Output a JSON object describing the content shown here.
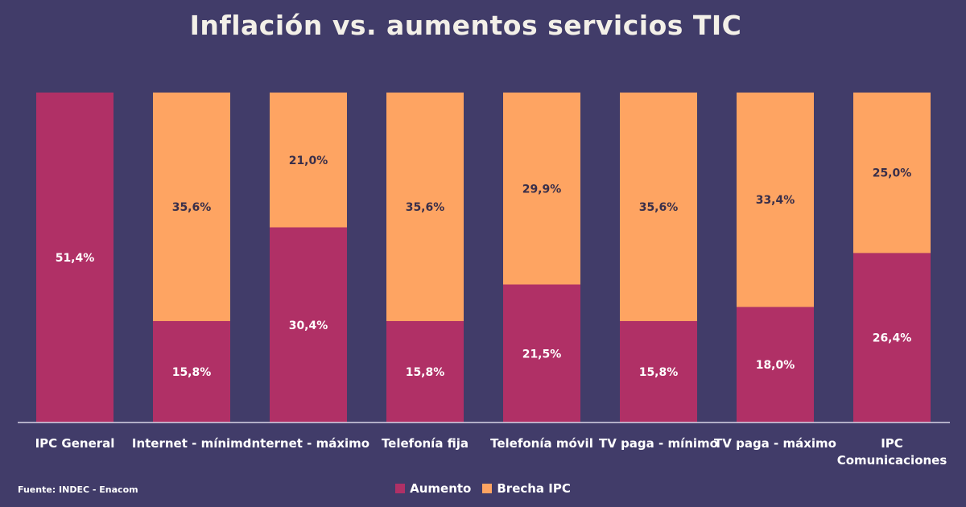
{
  "chart_data": {
    "type": "bar",
    "stacked": true,
    "title": "Inflación vs. aumentos servicios TIC",
    "categories": [
      "IPC General",
      "Internet - mínimo",
      "Internet - máximo",
      "Telefonía fija",
      "Telefonía móvil",
      "TV paga - mínimo",
      "TV paga - máximo",
      [
        "IPC",
        "Comunicaciones"
      ]
    ],
    "series": [
      {
        "name": "Aumento",
        "color": "#b03066",
        "values": [
          51.4,
          15.8,
          30.4,
          15.8,
          21.5,
          15.8,
          18.0,
          26.4
        ],
        "labels": [
          "51,4%",
          "15,8%",
          "30,4%",
          "15,8%",
          "21,5%",
          "15,8%",
          "18,0%",
          "26,4%"
        ]
      },
      {
        "name": "Brecha IPC",
        "color": "#fea462",
        "values": [
          null,
          35.6,
          21.0,
          35.6,
          29.9,
          35.6,
          33.4,
          25.0
        ],
        "labels": [
          "",
          "35,6%",
          "21,0%",
          "35,6%",
          "29,9%",
          "35,6%",
          "33,4%",
          "25,0%"
        ]
      }
    ],
    "ylim": [
      0,
      51.4
    ],
    "legend_position": "bottom",
    "grid": false
  },
  "source": "Fuente: INDEC - Enacom"
}
